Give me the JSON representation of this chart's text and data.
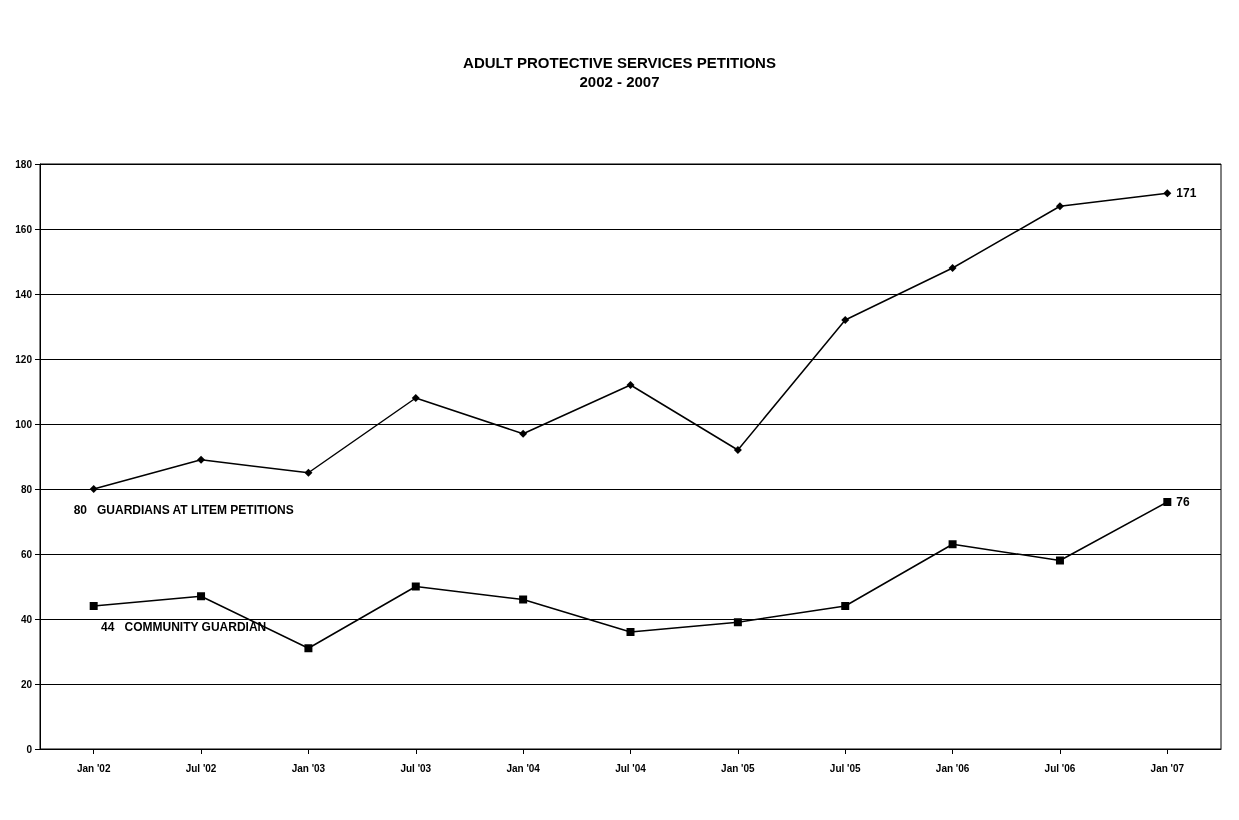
{
  "chart_data": {
    "type": "line",
    "title": "ADULT PROTECTIVE SERVICES PETITIONS",
    "subtitle": "2002 - 2007",
    "categories": [
      "Jan '02",
      "Jul '02",
      "Jan '03",
      "Jul '03",
      "Jan '04",
      "Jul '04",
      "Jan '05",
      "Jul '05",
      "Jan '06",
      "Jul '06",
      "Jan '07"
    ],
    "series": [
      {
        "name": "GUARDIANS AT LITEM PETITIONS",
        "color": "#000000",
        "marker": "diamond",
        "values": [
          80,
          89,
          85,
          108,
          97,
          112,
          92,
          132,
          148,
          167,
          171
        ],
        "value_labels": [
          "80",
          null,
          null,
          null,
          null,
          null,
          null,
          null,
          null,
          null,
          "171"
        ]
      },
      {
        "name": "COMMUNITY GUARDIAN",
        "color": "#000000",
        "marker": "square",
        "values": [
          44,
          47,
          31,
          50,
          46,
          36,
          39,
          44,
          63,
          58,
          76
        ],
        "value_labels": [
          "44",
          null,
          null,
          null,
          null,
          null,
          null,
          null,
          null,
          null,
          "76"
        ]
      }
    ],
    "ylim": [
      0,
      180
    ],
    "yticks": [
      0,
      20,
      40,
      60,
      80,
      100,
      120,
      140,
      160,
      180
    ],
    "grid": "y",
    "legend": false,
    "line_style": "solid"
  }
}
